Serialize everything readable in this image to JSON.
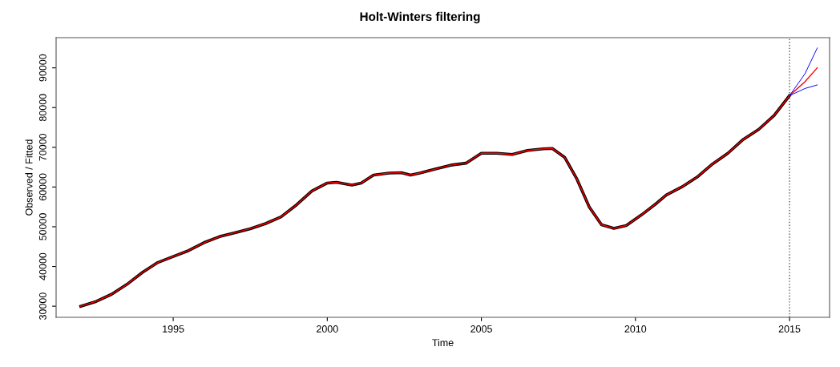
{
  "chart_data": {
    "type": "line",
    "title": "Holt-Winters filtering",
    "xlabel": "Time",
    "ylabel": "Observed / Fitted",
    "xlim": [
      1991.2,
      2016.3
    ],
    "xticks": [
      1995,
      2000,
      2005,
      2010,
      2015
    ],
    "ylim": [
      27200,
      97600
    ],
    "yticks": [
      30000,
      40000,
      50000,
      60000,
      70000,
      80000,
      90000
    ],
    "grid": false,
    "legend": false,
    "line_style": "solid",
    "marker": "none",
    "ref_lines": [
      {
        "axis": "x",
        "value": 2015,
        "label": null,
        "color": "#555555",
        "line_style": "dotted"
      }
    ],
    "series": [
      {
        "color": "#000000",
        "x": [
          1992.0,
          1992.5,
          1993.0,
          1993.5,
          1994.0,
          1994.5,
          1995.0,
          1995.5,
          1996.0,
          1996.5,
          1997.0,
          1997.5,
          1998.0,
          1998.5,
          1999.0,
          1999.5,
          2000.0,
          2000.3,
          2000.8,
          2001.1,
          2001.5,
          2002.0,
          2002.4,
          2002.7,
          2003.0,
          2003.5,
          2004.0,
          2004.5,
          2005.0,
          2005.5,
          2006.0,
          2006.5,
          2007.0,
          2007.3,
          2007.7,
          2008.1,
          2008.5,
          2008.9,
          2009.3,
          2009.7,
          2010.2,
          2010.7,
          2011.0,
          2011.5,
          2012.0,
          2012.5,
          2013.0,
          2013.5,
          2014.0,
          2014.5,
          2015.0
        ],
        "values": [
          30000,
          31200,
          33000,
          35500,
          38500,
          41000,
          42500,
          44000,
          46000,
          47500,
          48500,
          49500,
          50800,
          52500,
          55500,
          59000,
          61000,
          61200,
          60500,
          61000,
          63000,
          63500,
          63600,
          63000,
          63500,
          64500,
          65500,
          66000,
          68500,
          68500,
          68200,
          69200,
          69600,
          69700,
          67500,
          62000,
          55000,
          50500,
          49600,
          50300,
          53000,
          56000,
          58000,
          60000,
          62500,
          65800,
          68500,
          72000,
          74500,
          78000,
          83000
        ]
      },
      {
        "color": "#ff0000",
        "x": [
          1992.0,
          1992.5,
          1993.0,
          1993.5,
          1994.0,
          1994.5,
          1995.0,
          1995.5,
          1996.0,
          1996.5,
          1997.0,
          1997.5,
          1998.0,
          1998.5,
          1999.0,
          1999.5,
          2000.0,
          2000.3,
          2000.8,
          2001.1,
          2001.5,
          2002.0,
          2002.4,
          2002.7,
          2003.0,
          2003.5,
          2004.0,
          2004.5,
          2005.0,
          2005.5,
          2006.0,
          2006.5,
          2007.0,
          2007.3,
          2007.7,
          2008.1,
          2008.5,
          2008.9,
          2009.3,
          2009.7,
          2010.2,
          2010.7,
          2011.0,
          2011.5,
          2012.0,
          2012.5,
          2013.0,
          2013.5,
          2014.0,
          2014.5,
          2015.0,
          2015.5,
          2015.9
        ],
        "values": [
          30000,
          31200,
          33000,
          35500,
          38500,
          41000,
          42500,
          44000,
          46000,
          47500,
          48500,
          49500,
          50800,
          52500,
          55500,
          59000,
          61000,
          61200,
          60500,
          61000,
          63000,
          63500,
          63600,
          63000,
          63500,
          64500,
          65500,
          66000,
          68500,
          68500,
          68200,
          69200,
          69600,
          69700,
          67500,
          62000,
          55000,
          50500,
          49600,
          50300,
          53000,
          56000,
          58000,
          60000,
          62500,
          65800,
          68500,
          72000,
          74500,
          78000,
          83000,
          86500,
          90000
        ]
      },
      {
        "color": "#0000ff",
        "x": [
          2015.0,
          2015.5,
          2015.9
        ],
        "values": [
          83000,
          88500,
          95000
        ]
      },
      {
        "color": "#0000ff",
        "x": [
          2015.0,
          2015.5,
          2015.9
        ],
        "values": [
          83000,
          84800,
          85700
        ]
      }
    ]
  }
}
